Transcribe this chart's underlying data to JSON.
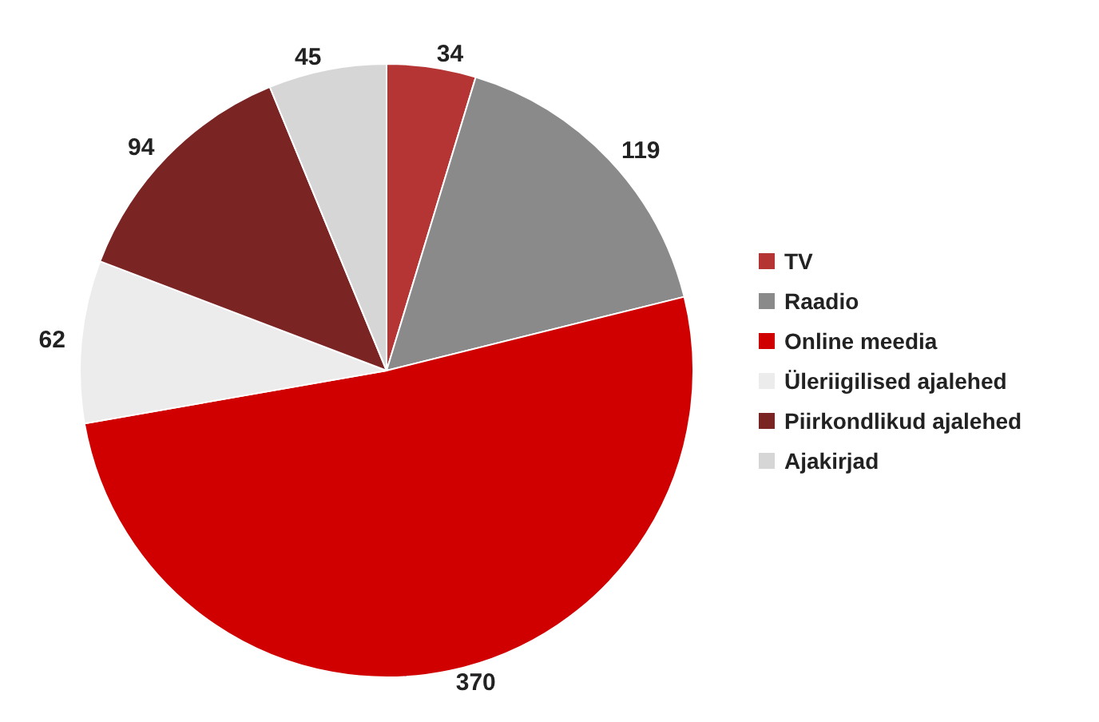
{
  "chart_data": {
    "type": "pie",
    "categories": [
      "TV",
      "Raadio",
      "Online meedia",
      "Üleriigilised ajalehed",
      "Piirkondlikud ajalehed",
      "Ajakirjad"
    ],
    "values": [
      34,
      119,
      370,
      62,
      94,
      45
    ],
    "colors": [
      "#b53535",
      "#8a8a8a",
      "#d00000",
      "#ececec",
      "#7b2424",
      "#d6d6d6"
    ],
    "data_labels": true,
    "legend": "right"
  }
}
